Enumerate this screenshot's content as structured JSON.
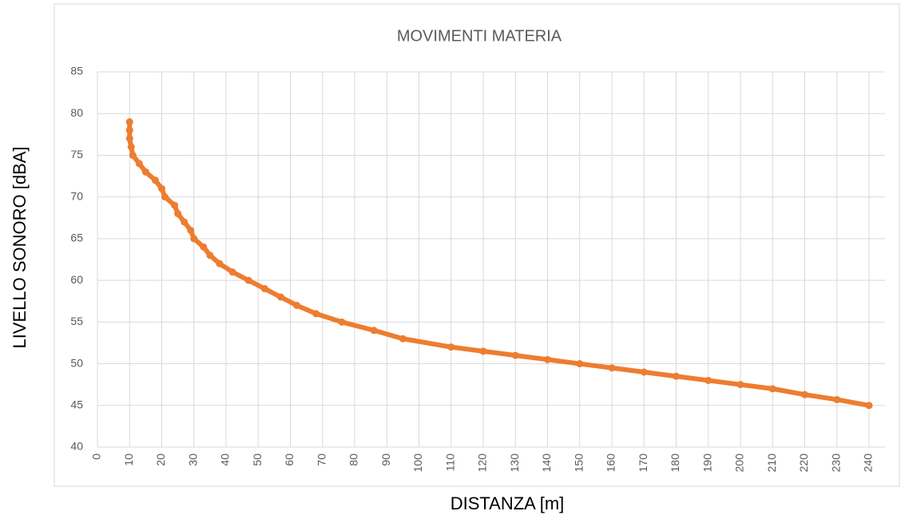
{
  "chart_data": {
    "type": "line",
    "title": "MOVIMENTI MATERIA",
    "x_label": "DISTANZA [m]",
    "y_label": "LIVELLO SONORO [dBA]",
    "x": [
      10,
      10,
      10,
      10.5,
      11,
      13,
      15,
      18,
      20,
      21,
      24,
      25,
      27,
      29,
      30,
      33,
      35,
      38,
      42,
      47,
      52,
      57,
      62,
      68,
      76,
      86,
      95,
      110,
      120,
      130,
      140,
      150,
      160,
      170,
      180,
      190,
      200,
      210,
      220,
      230,
      240
    ],
    "series": [
      {
        "name": "MOVIMENTI MATERIA",
        "color": "#ed7d31",
        "values": [
          79,
          78,
          77,
          76,
          75,
          74,
          73,
          72,
          71,
          70,
          69,
          68,
          67,
          66,
          65,
          64,
          63,
          62,
          61,
          60,
          59,
          58,
          57,
          56,
          55,
          54,
          53,
          52,
          51.5,
          51,
          50.5,
          50,
          49.5,
          49,
          48.5,
          48,
          47.5,
          47,
          46.3,
          45.7,
          45
        ]
      }
    ],
    "xlim": [
      0,
      240
    ],
    "xticks": [
      0,
      10,
      20,
      30,
      40,
      50,
      60,
      70,
      80,
      90,
      100,
      110,
      120,
      130,
      140,
      150,
      160,
      170,
      180,
      190,
      200,
      210,
      220,
      230,
      240
    ],
    "ylim": [
      40,
      85
    ],
    "yticks": [
      40,
      45,
      50,
      55,
      60,
      65,
      70,
      75,
      80,
      85
    ],
    "grid": true
  }
}
